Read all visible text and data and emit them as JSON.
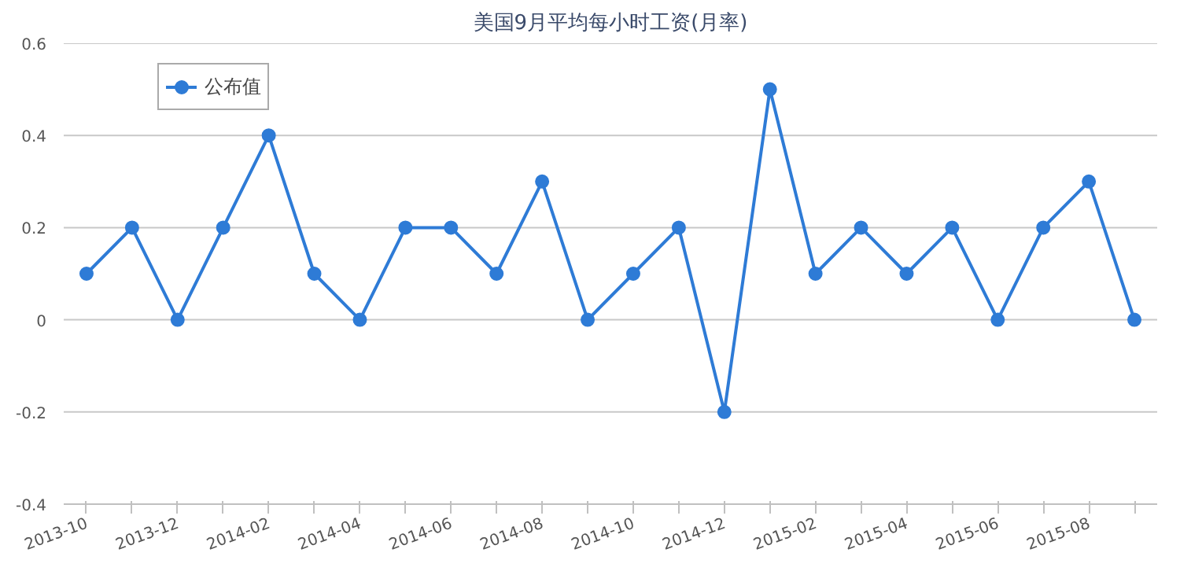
{
  "chart_data": {
    "type": "line",
    "title": "美国9月平均每小时工资(月率)",
    "categories": [
      "2013-10",
      null,
      "2013-12",
      null,
      "2014-02",
      null,
      "2014-04",
      null,
      "2014-06",
      null,
      "2014-08",
      null,
      "2014-10",
      null,
      "2014-12",
      null,
      "2015-02",
      null,
      "2015-04",
      null,
      "2015-06",
      null,
      "2015-08",
      null
    ],
    "series": [
      {
        "name": "公布值",
        "color": "#2e7bd6",
        "values": [
          0.1,
          0.2,
          0,
          0.2,
          0.4,
          0.1,
          0,
          0.2,
          0.2,
          0.1,
          0.3,
          0,
          0.1,
          0.2,
          -0.2,
          0.5,
          0.1,
          0.2,
          0.1,
          0.2,
          0,
          0.2,
          0.3,
          0
        ]
      }
    ],
    "ylim": [
      -0.4,
      0.6
    ],
    "yticks": [
      -0.4,
      -0.2,
      0,
      0.2,
      0.4,
      0.6
    ],
    "grid": "y",
    "legend": "top left",
    "marker": "circle",
    "line_style": "solid"
  }
}
